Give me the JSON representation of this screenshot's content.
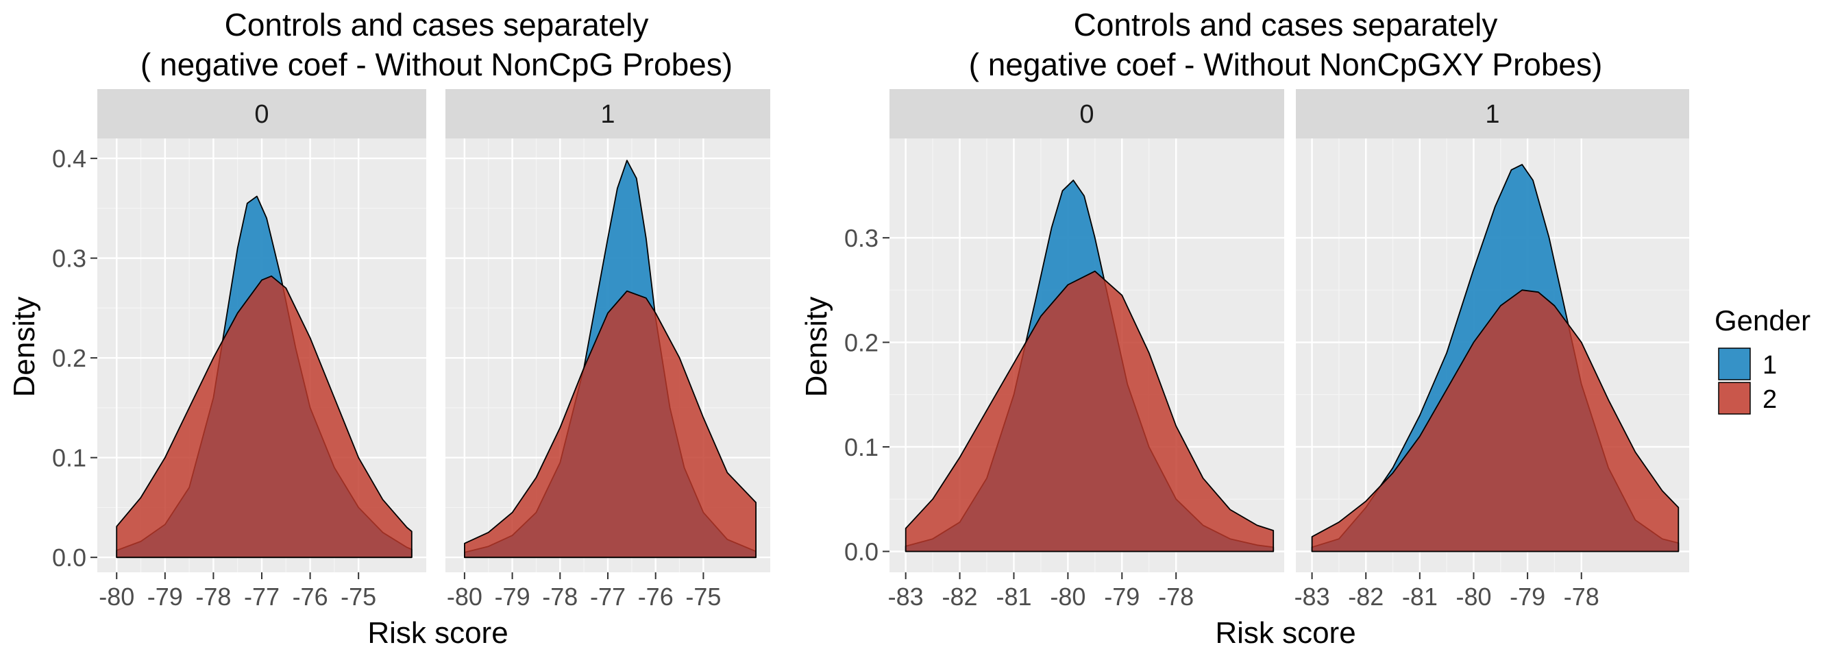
{
  "figure": {
    "legend": {
      "title": "Gender",
      "position": "right",
      "items": [
        {
          "label": "1",
          "color": "#2b8cc4"
        },
        {
          "label": "2",
          "color": "#c0392b"
        }
      ]
    }
  },
  "chart_data": [
    {
      "type": "area",
      "subtype": "density",
      "title": "Controls and cases separately",
      "subtitle": "( negative coef - Without NonCpG Probes)",
      "xlabel": "Risk score",
      "ylabel": "Density",
      "xlim": [
        -80.4,
        -73.6
      ],
      "ylim": [
        -0.015,
        0.42
      ],
      "xticks": [
        -80,
        -79,
        -78,
        -77,
        -76,
        -75
      ],
      "xtick_labels": [
        "-80",
        "-79",
        "-78",
        "-77",
        "-76",
        "-75"
      ],
      "yticks": [
        0.0,
        0.1,
        0.2,
        0.3,
        0.4
      ],
      "ytick_labels": [
        "0.0",
        "0.1",
        "0.2",
        "0.3",
        "0.4"
      ],
      "grid": true,
      "facets": [
        {
          "label": "0",
          "series": [
            {
              "name": "1",
              "color": "#2b8cc4",
              "x": [
                -80.0,
                -79.5,
                -79.0,
                -78.5,
                -78.0,
                -77.7,
                -77.5,
                -77.3,
                -77.1,
                -76.9,
                -76.6,
                -76.3,
                -76.0,
                -75.5,
                -75.0,
                -74.5,
                -74.0,
                -73.9
              ],
              "y": [
                0.007,
                0.016,
                0.033,
                0.07,
                0.16,
                0.25,
                0.31,
                0.355,
                0.362,
                0.34,
                0.28,
                0.21,
                0.15,
                0.09,
                0.05,
                0.025,
                0.01,
                0.008
              ]
            },
            {
              "name": "2",
              "color": "#c0392b",
              "x": [
                -80.0,
                -79.5,
                -79.0,
                -78.5,
                -78.0,
                -77.5,
                -77.0,
                -76.8,
                -76.5,
                -76.0,
                -75.5,
                -75.0,
                -74.5,
                -74.0,
                -73.9
              ],
              "y": [
                0.031,
                0.06,
                0.1,
                0.15,
                0.2,
                0.245,
                0.278,
                0.282,
                0.27,
                0.22,
                0.16,
                0.1,
                0.058,
                0.03,
                0.026
              ]
            }
          ]
        },
        {
          "label": "1",
          "series": [
            {
              "name": "1",
              "color": "#2b8cc4",
              "x": [
                -80.0,
                -79.5,
                -79.0,
                -78.5,
                -78.0,
                -77.5,
                -77.0,
                -76.8,
                -76.6,
                -76.4,
                -76.2,
                -76.0,
                -75.7,
                -75.4,
                -75.0,
                -74.5,
                -73.9
              ],
              "y": [
                0.005,
                0.011,
                0.022,
                0.045,
                0.095,
                0.19,
                0.32,
                0.37,
                0.398,
                0.38,
                0.32,
                0.24,
                0.15,
                0.09,
                0.045,
                0.018,
                0.006
              ]
            },
            {
              "name": "2",
              "color": "#c0392b",
              "x": [
                -80.0,
                -79.5,
                -79.0,
                -78.5,
                -78.0,
                -77.5,
                -77.0,
                -76.6,
                -76.2,
                -76.0,
                -75.5,
                -75.0,
                -74.5,
                -73.9
              ],
              "y": [
                0.014,
                0.025,
                0.045,
                0.08,
                0.13,
                0.19,
                0.245,
                0.267,
                0.26,
                0.245,
                0.2,
                0.14,
                0.085,
                0.055
              ]
            }
          ]
        }
      ]
    },
    {
      "type": "area",
      "subtype": "density",
      "title": "Controls and cases separately",
      "subtitle": "( negative coef - Without NonCpGXY Probes)",
      "xlabel": "Risk score",
      "ylabel": "Density",
      "xlim": [
        -83.3,
        -76.0
      ],
      "ylim": [
        -0.02,
        0.395
      ],
      "xticks": [
        -83,
        -82,
        -81,
        -80,
        -79,
        -78
      ],
      "xtick_labels": [
        "-83",
        "-82",
        "-81",
        "-80",
        "-79",
        "-78"
      ],
      "yticks": [
        0.0,
        0.1,
        0.2,
        0.3
      ],
      "ytick_labels": [
        "0.0",
        "0.1",
        "0.2",
        "0.3"
      ],
      "grid": true,
      "facets": [
        {
          "label": "0",
          "series": [
            {
              "name": "1",
              "color": "#2b8cc4",
              "x": [
                -83.0,
                -82.5,
                -82.0,
                -81.5,
                -81.0,
                -80.6,
                -80.3,
                -80.1,
                -79.9,
                -79.7,
                -79.5,
                -79.2,
                -78.9,
                -78.5,
                -78.0,
                -77.5,
                -77.0,
                -76.5,
                -76.2
              ],
              "y": [
                0.005,
                0.012,
                0.028,
                0.07,
                0.15,
                0.24,
                0.31,
                0.345,
                0.355,
                0.34,
                0.3,
                0.23,
                0.16,
                0.1,
                0.05,
                0.025,
                0.012,
                0.006,
                0.004
              ]
            },
            {
              "name": "2",
              "color": "#c0392b",
              "x": [
                -83.0,
                -82.5,
                -82.0,
                -81.5,
                -81.0,
                -80.5,
                -80.0,
                -79.5,
                -79.0,
                -78.5,
                -78.0,
                -77.5,
                -77.0,
                -76.5,
                -76.2
              ],
              "y": [
                0.022,
                0.05,
                0.09,
                0.135,
                0.18,
                0.225,
                0.255,
                0.268,
                0.245,
                0.19,
                0.12,
                0.07,
                0.04,
                0.025,
                0.02
              ]
            }
          ]
        },
        {
          "label": "1",
          "series": [
            {
              "name": "1",
              "color": "#2b8cc4",
              "x": [
                -83.0,
                -82.5,
                -82.0,
                -81.5,
                -81.0,
                -80.5,
                -80.0,
                -79.6,
                -79.3,
                -79.1,
                -78.9,
                -78.6,
                -78.3,
                -78.0,
                -77.5,
                -77.0,
                -76.5,
                -76.2
              ],
              "y": [
                0.004,
                0.012,
                0.042,
                0.08,
                0.13,
                0.19,
                0.27,
                0.33,
                0.365,
                0.37,
                0.355,
                0.3,
                0.23,
                0.16,
                0.08,
                0.03,
                0.012,
                0.008
              ]
            },
            {
              "name": "2",
              "color": "#c0392b",
              "x": [
                -83.0,
                -82.5,
                -82.0,
                -81.5,
                -81.0,
                -80.5,
                -80.0,
                -79.5,
                -79.1,
                -78.8,
                -78.5,
                -78.0,
                -77.5,
                -77.0,
                -76.5,
                -76.2
              ],
              "y": [
                0.014,
                0.028,
                0.048,
                0.075,
                0.11,
                0.155,
                0.2,
                0.235,
                0.25,
                0.248,
                0.235,
                0.2,
                0.145,
                0.095,
                0.058,
                0.042
              ]
            }
          ]
        }
      ]
    }
  ]
}
